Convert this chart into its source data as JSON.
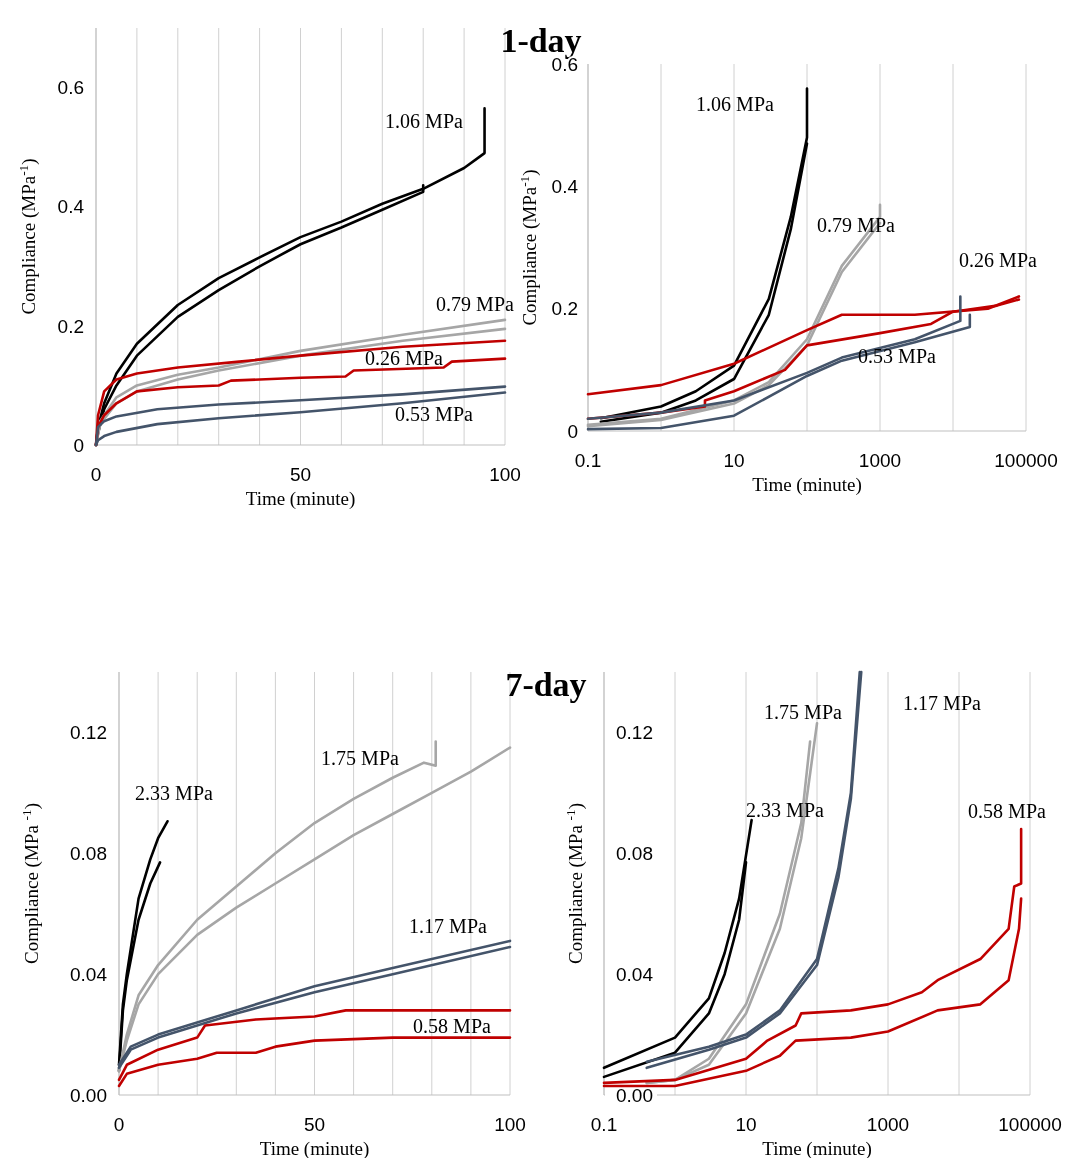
{
  "chart_data": [
    {
      "type": "line",
      "title": "1-day",
      "xlabel": "Time (minute)",
      "ylabel": "Compliance (MPa$^{-1}$)",
      "xlim": [
        0,
        100
      ],
      "ylim": [
        0,
        0.7
      ],
      "xticks": [
        0,
        {
          "value": 10,
          "label": null
        },
        {
          "value": 20,
          "label": null
        },
        {
          "value": 30,
          "label": null
        },
        {
          "value": 40,
          "label": null
        },
        50,
        {
          "value": 60,
          "label": null
        },
        {
          "value": 70,
          "label": null
        },
        {
          "value": 80,
          "label": null
        },
        {
          "value": 90,
          "label": null
        },
        100
      ],
      "yticks": [
        0,
        0.2,
        0.4,
        0.6
      ],
      "grid": "x",
      "series": [
        {
          "name": "1.06 MPa",
          "color": "#000000",
          "x": [
            0,
            0.5,
            2,
            5,
            10,
            20,
            30,
            40,
            50,
            60,
            70,
            80,
            90,
            94,
            95,
            95
          ],
          "values": [
            0,
            0.03,
            0.07,
            0.12,
            0.17,
            0.235,
            0.28,
            0.315,
            0.349,
            0.375,
            0.405,
            0.43,
            0.465,
            0.485,
            0.49,
            0.565
          ]
        },
        {
          "color": "#000000",
          "x": [
            0,
            0.5,
            2,
            5,
            10,
            20,
            30,
            40,
            50,
            60,
            70,
            80,
            80
          ],
          "values": [
            0,
            0.02,
            0.06,
            0.1,
            0.15,
            0.215,
            0.26,
            0.3,
            0.337,
            0.365,
            0.395,
            0.425,
            0.436
          ]
        },
        {
          "name": "0.79 MPa",
          "color": "#a6a6a6",
          "x": [
            0,
            1,
            5,
            10,
            20,
            30,
            50,
            75,
            100
          ],
          "values": [
            0,
            0.04,
            0.08,
            0.1,
            0.118,
            0.13,
            0.158,
            0.185,
            0.21
          ]
        },
        {
          "color": "#a6a6a6",
          "x": [
            0,
            1,
            5,
            10,
            20,
            30,
            50,
            75,
            100
          ],
          "values": [
            0,
            0.035,
            0.07,
            0.09,
            0.11,
            0.125,
            0.15,
            0.175,
            0.195
          ]
        },
        {
          "name": "0.26 MPa",
          "color": "#c00000",
          "x": [
            0,
            0.5,
            2,
            5,
            10,
            20,
            35,
            50,
            75,
            100
          ],
          "values": [
            0,
            0.05,
            0.09,
            0.11,
            0.12,
            0.13,
            0.14,
            0.15,
            0.165,
            0.175
          ]
        },
        {
          "color": "#c00000",
          "x": [
            0,
            0.5,
            2,
            5,
            10,
            20,
            30,
            33,
            50,
            61,
            63,
            85,
            87,
            100
          ],
          "values": [
            0,
            0.03,
            0.05,
            0.07,
            0.09,
            0.097,
            0.1,
            0.108,
            0.113,
            0.115,
            0.125,
            0.13,
            0.14,
            0.145
          ]
        },
        {
          "name": "0.53 MPa",
          "color": "#44546a",
          "x": [
            0,
            0.5,
            2,
            5,
            15,
            30,
            50,
            75,
            100
          ],
          "values": [
            0,
            0.03,
            0.04,
            0.048,
            0.06,
            0.068,
            0.075,
            0.085,
            0.098
          ]
        },
        {
          "color": "#44546a",
          "x": [
            0,
            0.5,
            2,
            5,
            15,
            30,
            50,
            75,
            100
          ],
          "values": [
            0,
            0.008,
            0.015,
            0.022,
            0.035,
            0.045,
            0.055,
            0.07,
            0.088
          ]
        }
      ]
    },
    {
      "type": "line",
      "xlabel": "Time (minute)",
      "ylabel": "Compliance (MPa$^{-1}$)",
      "log": "x",
      "xlim": [
        0.1,
        100000
      ],
      "ylim": [
        0,
        0.6
      ],
      "xticks": [
        0.1,
        {
          "value": 1,
          "label": null
        },
        10,
        {
          "value": 100,
          "label": null
        },
        1000,
        {
          "value": 10000,
          "label": null
        },
        100000
      ],
      "yticks": [
        0,
        0.2,
        0.4,
        0.6
      ],
      "grid": "x",
      "series": [
        {
          "name": "1.06 MPa",
          "color": "#000000",
          "x": [
            0.15,
            1,
            3,
            10,
            30,
            60,
            100,
            100
          ],
          "values": [
            0.021,
            0.04,
            0.065,
            0.107,
            0.216,
            0.35,
            0.48,
            0.56
          ]
        },
        {
          "color": "#000000",
          "x": [
            0.15,
            1,
            3,
            10,
            30,
            60,
            100
          ],
          "values": [
            0.015,
            0.03,
            0.05,
            0.085,
            0.19,
            0.33,
            0.47
          ]
        },
        {
          "name": "0.79 MPa",
          "color": "#a6a6a6",
          "x": [
            0.1,
            1,
            10,
            30,
            100,
            300,
            1000,
            1000
          ],
          "values": [
            0.01,
            0.02,
            0.05,
            0.08,
            0.15,
            0.27,
            0.35,
            0.37
          ]
        },
        {
          "color": "#a6a6a6",
          "x": [
            0.1,
            1,
            10,
            30,
            100,
            300,
            1000
          ],
          "values": [
            0.008,
            0.018,
            0.045,
            0.075,
            0.14,
            0.26,
            0.34
          ]
        },
        {
          "name": "0.26 MPa",
          "color": "#c00000",
          "x": [
            0.1,
            1,
            10,
            100,
            300,
            3000,
            30000,
            80000
          ],
          "values": [
            0.06,
            0.075,
            0.11,
            0.165,
            0.19,
            0.19,
            0.2,
            0.22
          ]
        },
        {
          "color": "#c00000",
          "x": [
            0.1,
            1,
            4,
            4,
            10,
            50,
            100,
            1000,
            5000,
            10000,
            40000,
            80000
          ],
          "values": [
            0.02,
            0.03,
            0.04,
            0.05,
            0.065,
            0.1,
            0.14,
            0.16,
            0.175,
            0.195,
            0.205,
            0.215
          ]
        },
        {
          "name": "0.53 MPa",
          "color": "#44546a",
          "x": [
            0.1,
            1,
            10,
            100,
            300,
            3000,
            12600,
            12600
          ],
          "values": [
            0.02,
            0.03,
            0.05,
            0.095,
            0.12,
            0.15,
            0.18,
            0.22
          ]
        },
        {
          "color": "#44546a",
          "x": [
            0.1,
            1,
            10,
            100,
            300,
            3000,
            17000,
            17000
          ],
          "values": [
            0.003,
            0.005,
            0.025,
            0.09,
            0.115,
            0.145,
            0.17,
            0.19
          ]
        }
      ]
    },
    {
      "type": "line",
      "title": "7-day",
      "xlabel": "Time (minute)",
      "ylabel": "Compliance (MPa $^{-1}$)",
      "xlim": [
        0,
        100
      ],
      "ylim": [
        0,
        0.14
      ],
      "xticks": [
        0,
        {
          "value": 10,
          "label": null
        },
        {
          "value": 20,
          "label": null
        },
        {
          "value": 30,
          "label": null
        },
        {
          "value": 40,
          "label": null
        },
        50,
        {
          "value": 60,
          "label": null
        },
        {
          "value": 70,
          "label": null
        },
        {
          "value": 80,
          "label": null
        },
        {
          "value": 90,
          "label": null
        },
        100
      ],
      "yticks": [
        {
          "value": 0,
          "label": "0.00"
        },
        0.04,
        0.08,
        0.12
      ],
      "grid": "x",
      "series": [
        {
          "name": "2.33 MPa",
          "color": "#000000",
          "x": [
            0,
            1,
            2,
            5,
            8,
            10,
            12.4
          ],
          "values": [
            0.01,
            0.03,
            0.04,
            0.065,
            0.078,
            0.085,
            0.0906
          ]
        },
        {
          "color": "#000000",
          "x": [
            0,
            1,
            2,
            5,
            8,
            10.5
          ],
          "values": [
            0.008,
            0.028,
            0.038,
            0.058,
            0.07,
            0.077
          ]
        },
        {
          "name": "1.75 MPa",
          "color": "#a6a6a6",
          "x": [
            0,
            2,
            5,
            10,
            20,
            30,
            40,
            50,
            60,
            70,
            78,
            81,
            81
          ],
          "values": [
            0.008,
            0.02,
            0.033,
            0.043,
            0.058,
            0.069,
            0.08,
            0.09,
            0.098,
            0.105,
            0.11,
            0.109,
            0.117
          ]
        },
        {
          "color": "#a6a6a6",
          "x": [
            0,
            2,
            5,
            10,
            20,
            30,
            40,
            50,
            60,
            70,
            80,
            90,
            100
          ],
          "values": [
            0.008,
            0.018,
            0.03,
            0.04,
            0.053,
            0.062,
            0.07,
            0.078,
            0.086,
            0.093,
            0.1,
            0.107,
            0.115
          ]
        },
        {
          "name": "1.17 MPa",
          "color": "#44546a",
          "x": [
            0,
            3,
            10,
            30,
            50,
            70,
            100
          ],
          "values": [
            0.01,
            0.016,
            0.02,
            0.028,
            0.036,
            0.042,
            0.051
          ]
        },
        {
          "color": "#44546a",
          "x": [
            0,
            3,
            10,
            30,
            50,
            70,
            100
          ],
          "values": [
            0.009,
            0.015,
            0.019,
            0.027,
            0.034,
            0.04,
            0.049
          ]
        },
        {
          "name": "0.58 MPa",
          "color": "#c00000",
          "x": [
            0,
            2,
            10,
            20,
            22,
            35,
            50,
            58,
            100
          ],
          "values": [
            0.005,
            0.01,
            0.015,
            0.019,
            0.023,
            0.025,
            0.026,
            0.028,
            0.028
          ]
        },
        {
          "color": "#c00000",
          "x": [
            0,
            2,
            10,
            20,
            25,
            35,
            40,
            50,
            70,
            100
          ],
          "values": [
            0.003,
            0.007,
            0.01,
            0.012,
            0.014,
            0.014,
            0.016,
            0.018,
            0.019,
            0.019
          ]
        }
      ]
    },
    {
      "type": "line",
      "xlabel": "Time (minute)",
      "ylabel": "Compliance (MPa $^{-1}$)",
      "log": "x",
      "xlim": [
        0.1,
        100000
      ],
      "ylim": [
        0,
        0.14
      ],
      "xticks": [
        0.1,
        {
          "value": 1,
          "label": null
        },
        10,
        {
          "value": 100,
          "label": null
        },
        1000,
        {
          "value": 10000,
          "label": null
        },
        100000
      ],
      "yticks": [
        {
          "value": 0,
          "label": "0.00"
        },
        0.04,
        0.08,
        0.12
      ],
      "grid": "x",
      "series": [
        {
          "name": "2.33 MPa",
          "color": "#000000",
          "x": [
            0.1,
            1,
            3,
            5,
            8,
            12
          ],
          "values": [
            0.009,
            0.019,
            0.032,
            0.047,
            0.065,
            0.091
          ]
        },
        {
          "color": "#000000",
          "x": [
            0.1,
            1,
            3,
            5,
            8,
            10
          ],
          "values": [
            0.006,
            0.014,
            0.027,
            0.04,
            0.058,
            0.077
          ]
        },
        {
          "name": "1.75 MPa",
          "color": "#a6a6a6",
          "x": [
            0.4,
            1,
            3,
            10,
            30,
            60,
            80
          ],
          "values": [
            0.004,
            0.005,
            0.012,
            0.03,
            0.06,
            0.09,
            0.117
          ]
        },
        {
          "color": "#a6a6a6",
          "x": [
            0.4,
            1,
            3,
            10,
            30,
            60,
            100
          ],
          "values": [
            0.004,
            0.005,
            0.01,
            0.027,
            0.055,
            0.085,
            0.123
          ]
        },
        {
          "name": "1.17 MPa",
          "color": "#44546a",
          "x": [
            0.4,
            3,
            10,
            30,
            100,
            200,
            300,
            400
          ],
          "values": [
            0.011,
            0.016,
            0.02,
            0.028,
            0.045,
            0.075,
            0.1,
            0.14
          ]
        },
        {
          "color": "#44546a",
          "x": [
            0.4,
            3,
            10,
            30,
            100,
            200,
            300,
            420
          ],
          "values": [
            0.009,
            0.015,
            0.019,
            0.027,
            0.043,
            0.072,
            0.098,
            0.14
          ]
        },
        {
          "name": "0.58 MPa",
          "color": "#c00000",
          "x": [
            0.1,
            1,
            10,
            20,
            50,
            60,
            300,
            1000,
            3000,
            5000,
            20000,
            50000,
            60000,
            75000,
            75000
          ],
          "values": [
            0.004,
            0.005,
            0.012,
            0.018,
            0.023,
            0.027,
            0.028,
            0.03,
            0.034,
            0.038,
            0.045,
            0.055,
            0.069,
            0.07,
            0.088
          ]
        },
        {
          "color": "#c00000",
          "x": [
            0.1,
            1,
            10,
            30,
            50,
            300,
            1000,
            5000,
            20000,
            50000,
            70000,
            75000
          ],
          "values": [
            0.003,
            0.003,
            0.008,
            0.013,
            0.018,
            0.019,
            0.021,
            0.028,
            0.03,
            0.038,
            0.055,
            0.065
          ]
        }
      ]
    }
  ]
}
